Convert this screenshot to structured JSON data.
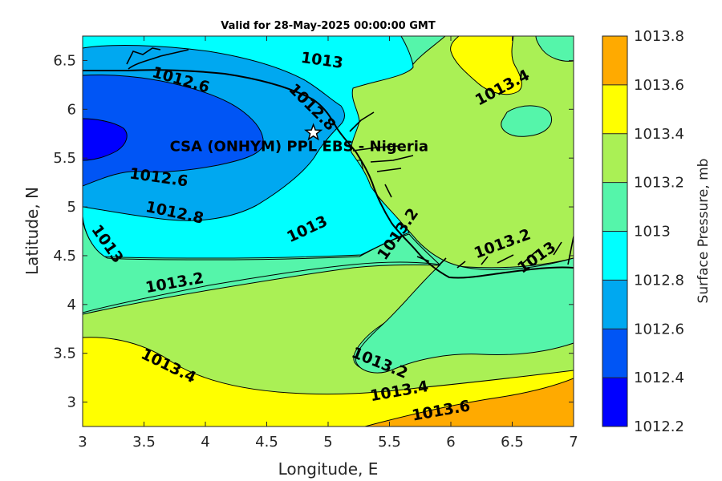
{
  "title": "Valid for 28-May-2025 00:00:00 GMT",
  "xlabel": "Longitude, E",
  "ylabel": "Latitude, N",
  "colorbar_label": "Surface Pressure, mb",
  "site": {
    "label": "CSA (ONHYM) PPL EBS - Nigeria",
    "lon": 4.88,
    "lat": 5.76
  },
  "chart_data": {
    "type": "contour",
    "xlim": [
      3,
      7
    ],
    "ylim": [
      2.75,
      6.75
    ],
    "x_ticks": [
      3,
      3.5,
      4,
      4.5,
      5,
      5.5,
      6,
      6.5,
      7
    ],
    "x_tick_labels": [
      "3",
      "3.5",
      "4",
      "4.5",
      "5",
      "5.5",
      "6",
      "6.5",
      "7"
    ],
    "y_ticks": [
      3,
      3.5,
      4,
      4.5,
      5,
      5.5,
      6,
      6.5
    ],
    "y_tick_labels": [
      "3",
      "3.5",
      "4",
      "4.5",
      "5",
      "5.5",
      "6",
      "6.5"
    ],
    "colorbar_levels": [
      1012.2,
      1012.4,
      1012.6,
      1012.8,
      1013,
      1013.2,
      1013.4,
      1013.6,
      1013.8
    ],
    "colorbar_tick_labels": [
      "1012.2",
      "1012.4",
      "1012.6",
      "1012.8",
      "1013",
      "1013.2",
      "1013.4",
      "1013.6",
      "1013.8"
    ],
    "colorbar_colors": [
      "#0000ff",
      "#0055f5",
      "#00a8f0",
      "#00ffff",
      "#55f5aa",
      "#aaf055",
      "#ffff00",
      "#ffaa00",
      "#ff5500"
    ],
    "contour_labels": [
      {
        "text": "1012.6",
        "lon": 3.8,
        "lat": 6.3,
        "angle": 16
      },
      {
        "text": "1013",
        "lon": 4.95,
        "lat": 6.5,
        "angle": 8
      },
      {
        "text": "1013.4",
        "lon": 6.42,
        "lat": 6.22,
        "angle": -28
      },
      {
        "text": "1012.8",
        "lon": 4.87,
        "lat": 6.02,
        "angle": 45
      },
      {
        "text": "1012.6",
        "lon": 3.62,
        "lat": 5.3,
        "angle": 8
      },
      {
        "text": "1012.8",
        "lon": 3.75,
        "lat": 4.94,
        "angle": 12
      },
      {
        "text": "1013",
        "lon": 3.2,
        "lat": 4.62,
        "angle": 55
      },
      {
        "text": "1013",
        "lon": 4.83,
        "lat": 4.77,
        "angle": -25
      },
      {
        "text": "1013.2",
        "lon": 5.57,
        "lat": 4.72,
        "angle": -55
      },
      {
        "text": "1013.2",
        "lon": 6.42,
        "lat": 4.62,
        "angle": -20
      },
      {
        "text": "1013",
        "lon": 6.7,
        "lat": 4.48,
        "angle": -35
      },
      {
        "text": "1013.2",
        "lon": 3.75,
        "lat": 4.22,
        "angle": -10
      },
      {
        "text": "1013.4",
        "lon": 3.7,
        "lat": 3.37,
        "angle": 26
      },
      {
        "text": "1013.2",
        "lon": 5.42,
        "lat": 3.4,
        "angle": 22
      },
      {
        "text": "1013.4",
        "lon": 5.58,
        "lat": 3.11,
        "angle": -10
      },
      {
        "text": "1013.6",
        "lon": 5.92,
        "lat": 2.91,
        "angle": -10
      }
    ]
  }
}
